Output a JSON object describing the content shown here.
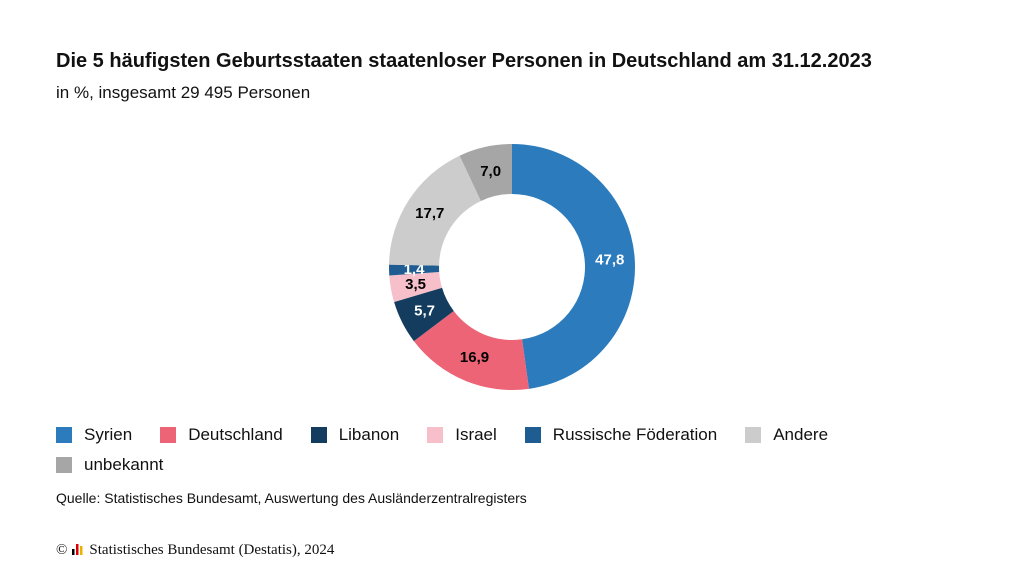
{
  "title": "Die 5 häufigsten Geburtsstaaten staatenloser Personen in Deutschland am 31.12.2023",
  "subtitle": "in %, insgesamt 29 495 Personen",
  "chart_data": {
    "type": "pie",
    "donut": true,
    "title": "Die 5 häufigsten Geburtsstaaten staatenloser Personen in Deutschland am 31.12.2023",
    "subtitle": "in %, insgesamt 29 495 Personen",
    "slices": [
      {
        "name": "Syrien",
        "value": 47.8,
        "label": "47,8",
        "color": "#2b7bbd",
        "label_color": "#ffffff"
      },
      {
        "name": "Deutschland",
        "value": 16.9,
        "label": "16,9",
        "color": "#ec6476",
        "label_color": "#000000"
      },
      {
        "name": "Libanon",
        "value": 5.7,
        "label": "5,7",
        "color": "#143c5e",
        "label_color": "#ffffff"
      },
      {
        "name": "Israel",
        "value": 3.5,
        "label": "3,5",
        "color": "#f6bfc9",
        "label_color": "#000000"
      },
      {
        "name": "Russische Föderation",
        "value": 1.4,
        "label": "1,4",
        "color": "#1f5c91",
        "label_color": "#ffffff"
      },
      {
        "name": "Andere",
        "value": 17.7,
        "label": "17,7",
        "color": "#cccccc",
        "label_color": "#000000"
      },
      {
        "name": "unbekannt",
        "value": 7.0,
        "label": "7,0",
        "color": "#a6a6a6",
        "label_color": "#000000"
      }
    ],
    "legend_position": "bottom"
  },
  "source": "Quelle: Statistisches Bundesamt, Auswertung des Ausländerzentralregisters",
  "copyright": {
    "symbol": "©",
    "text": "Statistisches Bundesamt (Destatis), 2024"
  }
}
